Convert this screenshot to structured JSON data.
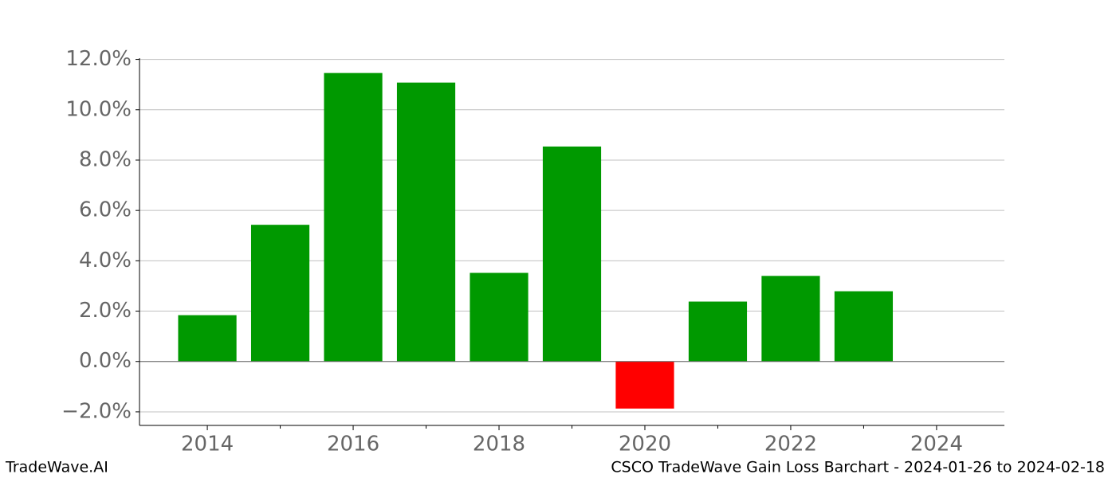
{
  "chart_data": {
    "type": "bar",
    "x": [
      2014,
      2015,
      2016,
      2017,
      2018,
      2019,
      2020,
      2021,
      2022,
      2023
    ],
    "values": [
      1.84,
      5.43,
      11.46,
      11.08,
      3.52,
      8.54,
      -1.87,
      2.38,
      3.4,
      2.79
    ],
    "colors": [
      "#009900",
      "#009900",
      "#009900",
      "#009900",
      "#009900",
      "#009900",
      "#ff0000",
      "#009900",
      "#009900",
      "#009900"
    ],
    "xlim": [
      2013.07,
      2024.93
    ],
    "xticks": [
      2014,
      2016,
      2018,
      2020,
      2022,
      2024
    ],
    "xminorticks": [
      2015,
      2017,
      2019,
      2021,
      2023
    ],
    "ylim": [
      -2.54,
      12.05
    ],
    "yticks": [
      {
        "value": 12,
        "label": "12.0%"
      },
      {
        "value": 10,
        "label": "10.0%"
      },
      {
        "value": 8,
        "label": "8.0%"
      },
      {
        "value": 6,
        "label": "6.0%"
      },
      {
        "value": 4,
        "label": "4.0%"
      },
      {
        "value": 2,
        "label": "2.0%"
      },
      {
        "value": 0,
        "label": "0.0%"
      },
      {
        "value": -2,
        "label": "−2.0%"
      }
    ],
    "grid": true,
    "footer_left": "TradeWave.AI",
    "footer_right": "CSCO TradeWave Gain Loss Barchart - 2024-01-26 to 2024-02-18"
  }
}
